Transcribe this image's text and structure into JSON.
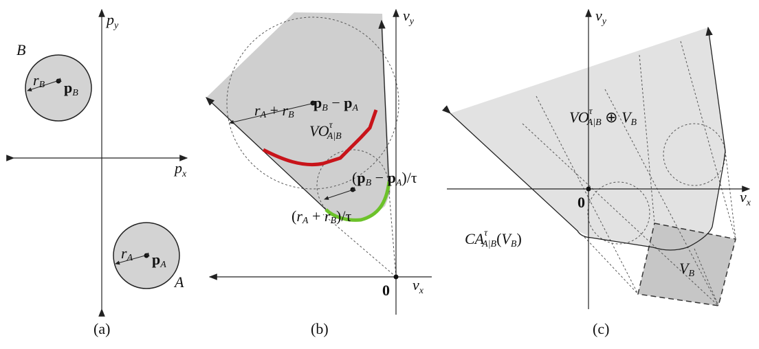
{
  "panel_a": {
    "caption": "(a)",
    "py": [
      "p",
      "y"
    ],
    "px": [
      "p",
      "x"
    ],
    "circle_b": "B",
    "rb": [
      "r",
      "B"
    ],
    "pb": [
      "p",
      "B"
    ],
    "circle_a": "A",
    "ra": [
      "r",
      "A"
    ],
    "pa": [
      "p",
      "A"
    ]
  },
  "panel_b": {
    "caption": "(b)",
    "vy": [
      "v",
      "y"
    ],
    "vx": [
      "v",
      "x"
    ],
    "origin": "0",
    "radius": [
      "r",
      "A",
      "+",
      "r",
      "B"
    ],
    "center": [
      "p",
      "B",
      "−",
      "p",
      "A"
    ],
    "vo": [
      "VO",
      "τ",
      "A|B"
    ],
    "scaled_center": [
      "(",
      "p",
      "B",
      "−",
      "p",
      "A",
      ")/τ"
    ],
    "scaled_radius": [
      "(",
      "r",
      "A",
      "+",
      "r",
      "B",
      ")/τ"
    ]
  },
  "panel_c": {
    "caption": "(c)",
    "vy": [
      "v",
      "y"
    ],
    "vx": [
      "v",
      "x"
    ],
    "origin": "0",
    "vo_sum": [
      "VO",
      "τ",
      "A|B",
      "⊕",
      "V",
      "B"
    ],
    "ca": [
      "CA",
      "τ",
      "A|B",
      "(",
      "V",
      "B",
      ")"
    ],
    "vb": [
      "V",
      "B"
    ]
  }
}
